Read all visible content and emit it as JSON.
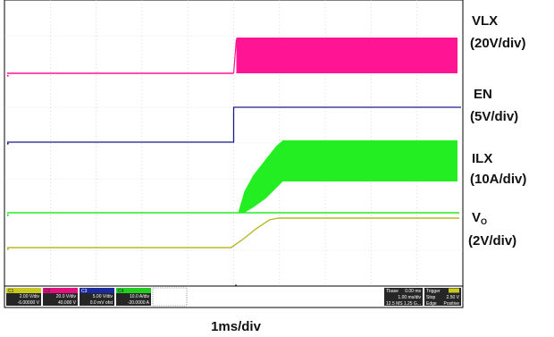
{
  "chart_data": {
    "type": "line",
    "xlabel": "1ms/div",
    "x_divisions": 10,
    "y_divisions": 8,
    "grid": true,
    "series": [
      {
        "name": "VLX",
        "scale": "(20V/div)",
        "color": "#ff1493",
        "pattern": "switching"
      },
      {
        "name": "EN",
        "scale": "(5V/div)",
        "color": "#1a1a8c",
        "pattern": "step"
      },
      {
        "name": "ILX",
        "scale": "(10A/div)",
        "color": "#22ee22",
        "pattern": "ramped switching"
      },
      {
        "name": "V",
        "subscript": "O",
        "scale": "(2V/div)",
        "color": "#b8b82a",
        "pattern": "soft-start ramp"
      }
    ],
    "readouts": {
      "channels": [
        {
          "id": "C1",
          "scale": "2.00 V/div",
          "offset": "-6.00000 V",
          "color": "#c8c820"
        },
        {
          "id": "C2",
          "scale": "20.0 V/div",
          "offset": "40.000 V",
          "color": "#e0117f"
        },
        {
          "id": "C3",
          "scale": "5.00 V/div",
          "offset": "0.0 mV ofst",
          "color": "#1a2a9c"
        },
        {
          "id": "C4",
          "scale": "10.0 A/div",
          "offset": "-20.0000 A",
          "color": "#22cc22"
        }
      ],
      "timebase": {
        "label": "Tbase",
        "delay": "0.00 ms",
        "scale": "1.00 ms/div",
        "samples": "12.5 MS",
        "rate": "1.25 G..."
      },
      "trigger": {
        "label": "Trigger",
        "mode": "Stop",
        "level": "2.50 V",
        "type": "Edge",
        "slope": "Positive"
      }
    }
  }
}
